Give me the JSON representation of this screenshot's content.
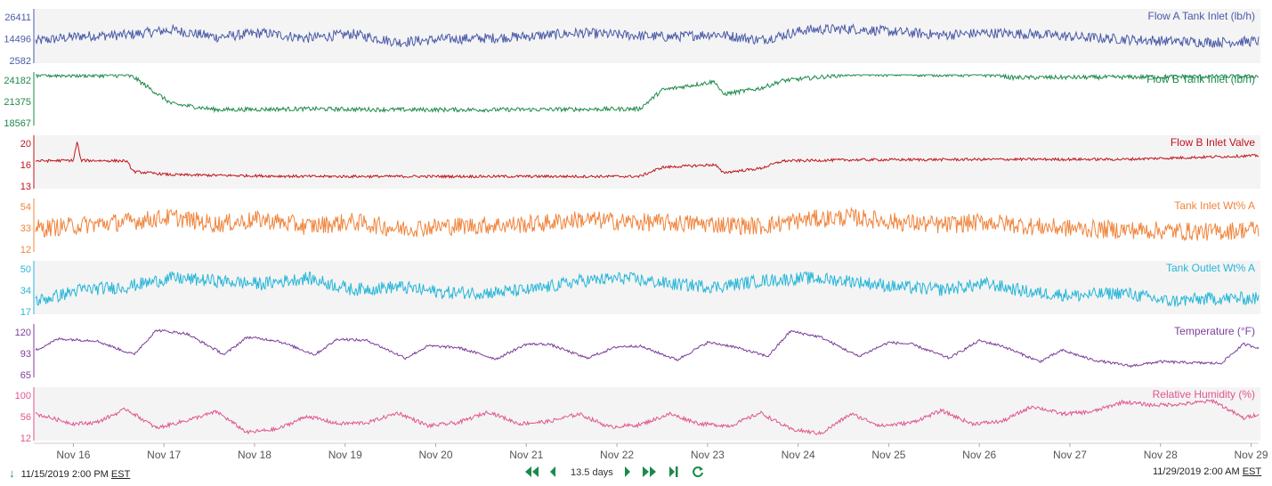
{
  "chart_data": {
    "type": "line",
    "x_range": [
      "2019-11-15 14:00",
      "2019-11-29 02:00"
    ],
    "x_ticks": [
      "Nov 16",
      "Nov 17",
      "Nov 18",
      "Nov 19",
      "Nov 20",
      "Nov 21",
      "Nov 22",
      "Nov 23",
      "Nov 24",
      "Nov 25",
      "Nov 26",
      "Nov 27",
      "Nov 28",
      "Nov 29"
    ],
    "grid": false,
    "panels": [
      {
        "title": "Flow A Tank Inlet (lb/h)",
        "color": "#4a5ba8",
        "y_ticks": [
          "26411",
          "14496",
          "2582"
        ],
        "ylim": [
          2582,
          26411
        ],
        "x": [
          "2019-11-15 14:00",
          "2019-11-16 02:00",
          "2019-11-16 14:00",
          "2019-11-17 02:00",
          "2019-11-17 14:00",
          "2019-11-18 02:00",
          "2019-11-18 14:00",
          "2019-11-19 02:00",
          "2019-11-19 14:00",
          "2019-11-20 02:00",
          "2019-11-20 14:00",
          "2019-11-21 02:00",
          "2019-11-21 14:00",
          "2019-11-22 02:00",
          "2019-11-22 14:00",
          "2019-11-23 02:00",
          "2019-11-23 14:00",
          "2019-11-24 02:00",
          "2019-11-24 14:00",
          "2019-11-25 02:00",
          "2019-11-25 14:00",
          "2019-11-26 02:00",
          "2019-11-26 14:00",
          "2019-11-27 02:00",
          "2019-11-27 14:00",
          "2019-11-28 02:00",
          "2019-11-28 14:00",
          "2019-11-29 02:00"
        ],
        "values": [
          12000,
          14500,
          15000,
          17500,
          14000,
          16000,
          13500,
          15500,
          11500,
          13000,
          13500,
          14500,
          16000,
          15000,
          14000,
          15500,
          12500,
          17500,
          18000,
          16500,
          15000,
          16000,
          15500,
          14000,
          13000,
          12000,
          11500,
          12000
        ],
        "noise": 5000
      },
      {
        "title": "Flow B Tank Inlet (lb/h)",
        "color": "#1e8a4a",
        "y_ticks": [
          "24182",
          "21375",
          "18567"
        ],
        "ylim": [
          18567,
          24182
        ],
        "x": [
          "2019-11-15 14:00",
          "2019-11-16 14:00",
          "2019-11-16 16:00",
          "2019-11-17 02:00",
          "2019-11-17 14:00",
          "2019-11-18 14:00",
          "2019-11-19 14:00",
          "2019-11-20 14:00",
          "2019-11-21 14:00",
          "2019-11-22 06:00",
          "2019-11-22 12:00",
          "2019-11-23 02:00",
          "2019-11-23 04:00",
          "2019-11-23 14:00",
          "2019-11-23 20:00",
          "2019-11-24 14:00",
          "2019-11-25 14:00",
          "2019-11-26 06:00",
          "2019-11-26 08:00",
          "2019-11-27 14:00",
          "2019-11-28 14:00",
          "2019-11-29 02:00"
        ],
        "values": [
          24100,
          24100,
          23900,
          20800,
          20100,
          20200,
          20100,
          20100,
          20150,
          20200,
          22400,
          23400,
          21900,
          22600,
          23500,
          24250,
          24200,
          24150,
          23850,
          23900,
          24000,
          24000
        ],
        "noise": 500
      },
      {
        "title": "Flow B Inlet Valve",
        "color": "#c0141c",
        "y_ticks": [
          "20",
          "16",
          "13"
        ],
        "ylim": [
          11.5,
          20.5
        ],
        "x": [
          "2019-11-15 14:00",
          "2019-11-16 00:00",
          "2019-11-16 01:00",
          "2019-11-16 02:00",
          "2019-11-16 14:00",
          "2019-11-16 16:00",
          "2019-11-17 02:00",
          "2019-11-18 14:00",
          "2019-11-19 14:00",
          "2019-11-20 14:00",
          "2019-11-21 14:00",
          "2019-11-22 06:00",
          "2019-11-22 12:00",
          "2019-11-23 02:00",
          "2019-11-23 04:00",
          "2019-11-23 14:00",
          "2019-11-23 20:00",
          "2019-11-24 14:00",
          "2019-11-26 08:00",
          "2019-11-27 14:00",
          "2019-11-29 02:00"
        ],
        "values": [
          16.2,
          16.3,
          19.8,
          16.3,
          16.2,
          14.2,
          13.6,
          13.3,
          13.3,
          13.3,
          13.3,
          13.3,
          15.0,
          15.5,
          14.0,
          14.8,
          16.2,
          16.4,
          16.5,
          16.5,
          17.2
        ],
        "noise": 0.5
      },
      {
        "title": "Tank Inlet Wt% A",
        "color": "#f0843c",
        "y_ticks": [
          "54",
          "33",
          "12"
        ],
        "ylim": [
          12,
          54
        ],
        "x": [
          "2019-11-15 14:00",
          "2019-11-16 02:00",
          "2019-11-16 14:00",
          "2019-11-17 02:00",
          "2019-11-17 14:00",
          "2019-11-18 02:00",
          "2019-11-18 14:00",
          "2019-11-19 02:00",
          "2019-11-19 14:00",
          "2019-11-20 02:00",
          "2019-11-20 14:00",
          "2019-11-21 02:00",
          "2019-11-21 14:00",
          "2019-11-22 02:00",
          "2019-11-22 14:00",
          "2019-11-23 02:00",
          "2019-11-23 14:00",
          "2019-11-24 02:00",
          "2019-11-24 14:00",
          "2019-11-25 02:00",
          "2019-11-25 14:00",
          "2019-11-26 02:00",
          "2019-11-26 14:00",
          "2019-11-27 02:00",
          "2019-11-27 14:00",
          "2019-11-28 02:00",
          "2019-11-28 14:00",
          "2019-11-29 02:00"
        ],
        "values": [
          30,
          33,
          36,
          40,
          34,
          38,
          32,
          36,
          30,
          32,
          33,
          34,
          38,
          36,
          35,
          34,
          32,
          38,
          40,
          36,
          33,
          36,
          32,
          30,
          29,
          28,
          27,
          30
        ],
        "noise": 16
      },
      {
        "title": "Tank Outlet Wt% A",
        "color": "#27b6d8",
        "y_ticks": [
          "50",
          "34",
          "17"
        ],
        "ylim": [
          17,
          50
        ],
        "x": [
          "2019-11-15 14:00",
          "2019-11-16 02:00",
          "2019-11-16 14:00",
          "2019-11-17 02:00",
          "2019-11-17 14:00",
          "2019-11-18 02:00",
          "2019-11-18 14:00",
          "2019-11-19 02:00",
          "2019-11-19 14:00",
          "2019-11-20 02:00",
          "2019-11-20 14:00",
          "2019-11-21 02:00",
          "2019-11-21 14:00",
          "2019-11-22 02:00",
          "2019-11-22 14:00",
          "2019-11-23 02:00",
          "2019-11-23 14:00",
          "2019-11-24 02:00",
          "2019-11-24 14:00",
          "2019-11-25 02:00",
          "2019-11-25 14:00",
          "2019-11-26 02:00",
          "2019-11-26 14:00",
          "2019-11-27 02:00",
          "2019-11-27 14:00",
          "2019-11-28 02:00",
          "2019-11-28 14:00",
          "2019-11-29 02:00"
        ],
        "values": [
          24,
          32,
          34,
          40,
          38,
          36,
          40,
          32,
          34,
          30,
          30,
          32,
          38,
          40,
          36,
          34,
          38,
          40,
          38,
          34,
          32,
          36,
          30,
          28,
          30,
          24,
          26,
          26
        ],
        "noise": 9
      },
      {
        "title": "Temperature (°F)",
        "color": "#7b3d9a",
        "y_ticks": [
          "120",
          "93",
          "65"
        ],
        "ylim": [
          65,
          120
        ],
        "x": [
          "2019-11-15 14:00",
          "2019-11-15 20:00",
          "2019-11-16 06:00",
          "2019-11-16 16:00",
          "2019-11-16 22:00",
          "2019-11-17 06:00",
          "2019-11-17 16:00",
          "2019-11-17 22:00",
          "2019-11-18 06:00",
          "2019-11-18 16:00",
          "2019-11-18 22:00",
          "2019-11-19 06:00",
          "2019-11-19 16:00",
          "2019-11-19 22:00",
          "2019-11-20 06:00",
          "2019-11-20 16:00",
          "2019-11-21 00:00",
          "2019-11-21 06:00",
          "2019-11-21 16:00",
          "2019-11-22 00:00",
          "2019-11-22 06:00",
          "2019-11-22 16:00",
          "2019-11-23 00:00",
          "2019-11-23 06:00",
          "2019-11-23 16:00",
          "2019-11-23 22:00",
          "2019-11-24 06:00",
          "2019-11-24 16:00",
          "2019-11-25 00:00",
          "2019-11-25 06:00",
          "2019-11-25 16:00",
          "2019-11-26 00:00",
          "2019-11-26 06:00",
          "2019-11-26 16:00",
          "2019-11-26 22:00",
          "2019-11-27 06:00",
          "2019-11-27 16:00",
          "2019-11-28 00:00",
          "2019-11-28 06:00",
          "2019-11-28 16:00",
          "2019-11-28 22:00",
          "2019-11-29 02:00"
        ],
        "values": [
          93,
          106,
          104,
          88,
          116,
          112,
          88,
          108,
          104,
          88,
          106,
          104,
          84,
          98,
          96,
          83,
          100,
          100,
          84,
          97,
          98,
          82,
          102,
          98,
          86,
          115,
          108,
          86,
          102,
          100,
          84,
          104,
          98,
          80,
          93,
          82,
          75,
          80,
          79,
          78,
          100,
          96
        ],
        "noise": 3
      },
      {
        "title": "Relative Humidity (%)",
        "color": "#e0558f",
        "y_ticks": [
          "100",
          "56",
          "12"
        ],
        "ylim": [
          12,
          100
        ],
        "x": [
          "2019-11-15 14:00",
          "2019-11-16 00:00",
          "2019-11-16 06:00",
          "2019-11-16 14:00",
          "2019-11-16 22:00",
          "2019-11-17 06:00",
          "2019-11-17 14:00",
          "2019-11-17 22:00",
          "2019-11-18 06:00",
          "2019-11-18 14:00",
          "2019-11-18 22:00",
          "2019-11-19 06:00",
          "2019-11-19 14:00",
          "2019-11-19 22:00",
          "2019-11-20 06:00",
          "2019-11-20 14:00",
          "2019-11-20 22:00",
          "2019-11-21 06:00",
          "2019-11-21 14:00",
          "2019-11-21 22:00",
          "2019-11-22 06:00",
          "2019-11-22 14:00",
          "2019-11-22 22:00",
          "2019-11-23 06:00",
          "2019-11-23 14:00",
          "2019-11-23 22:00",
          "2019-11-24 06:00",
          "2019-11-24 14:00",
          "2019-11-24 22:00",
          "2019-11-25 06:00",
          "2019-11-25 14:00",
          "2019-11-25 22:00",
          "2019-11-26 06:00",
          "2019-11-26 14:00",
          "2019-11-26 22:00",
          "2019-11-27 06:00",
          "2019-11-27 14:00",
          "2019-11-27 22:00",
          "2019-11-28 06:00",
          "2019-11-28 14:00",
          "2019-11-28 22:00",
          "2019-11-29 02:00"
        ],
        "values": [
          56,
          38,
          40,
          65,
          30,
          44,
          60,
          22,
          28,
          52,
          38,
          40,
          58,
          34,
          40,
          60,
          38,
          42,
          56,
          32,
          36,
          56,
          38,
          34,
          58,
          28,
          20,
          56,
          34,
          40,
          62,
          38,
          42,
          70,
          56,
          60,
          78,
          72,
          74,
          80,
          48,
          56
        ],
        "noise": 7
      }
    ]
  },
  "footer": {
    "start_time": "11/15/2019 2:00 PM",
    "start_tz": "EST",
    "span": "13.5 days",
    "end_time": "11/29/2019 2:00 AM",
    "end_tz": "EST",
    "nav_color": "#1a8a4a"
  }
}
